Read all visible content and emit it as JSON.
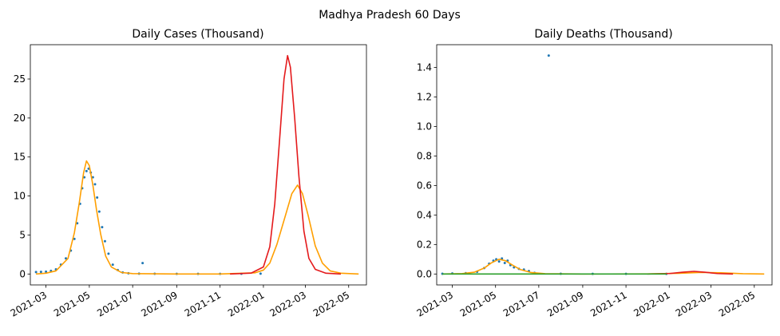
{
  "figure": {
    "suptitle": "Madhya Pradesh 60 Days"
  },
  "colors": {
    "observed": "#1f77b4",
    "model_red": "#e41a1c",
    "model_orange": "#ff9f00",
    "model_green": "#2ca02c",
    "axes": "#000000",
    "background": "#ffffff"
  },
  "chart_data": [
    {
      "type": "line",
      "title": "Daily Cases (Thousand)",
      "xlabel": "",
      "ylabel": "",
      "x_axis": "date",
      "xlim": [
        "2021-02-07",
        "2022-05-26"
      ],
      "ylim": [
        -1.4,
        29.4
      ],
      "x_ticks": [
        "2021-03-01",
        "2021-05-01",
        "2021-07-01",
        "2021-09-01",
        "2021-11-01",
        "2022-01-01",
        "2022-03-01",
        "2022-05-01"
      ],
      "x_tick_labels": [
        "2021-03",
        "2021-05",
        "2021-07",
        "2021-09",
        "2021-11",
        "2022-01",
        "2022-03",
        "2022-05"
      ],
      "y_ticks": [
        0,
        5,
        10,
        15,
        20,
        25
      ],
      "y_tick_labels": [
        "0",
        "5",
        "10",
        "15",
        "20",
        "25"
      ],
      "grid": false,
      "series": [
        {
          "kind": "scatter",
          "color": "observed",
          "points": [
            [
              "2021-02-15",
              0.25
            ],
            [
              "2021-02-22",
              0.28
            ],
            [
              "2021-03-01",
              0.3
            ],
            [
              "2021-03-08",
              0.4
            ],
            [
              "2021-03-15",
              0.6
            ],
            [
              "2021-03-22",
              1.2
            ],
            [
              "2021-03-29",
              2.0
            ],
            [
              "2021-04-05",
              3.0
            ],
            [
              "2021-04-10",
              4.5
            ],
            [
              "2021-04-14",
              6.5
            ],
            [
              "2021-04-18",
              9.0
            ],
            [
              "2021-04-21",
              11.0
            ],
            [
              "2021-04-24",
              12.4
            ],
            [
              "2021-04-27",
              13.2
            ],
            [
              "2021-04-30",
              13.5
            ],
            [
              "2021-05-03",
              13.0
            ],
            [
              "2021-05-06",
              12.4
            ],
            [
              "2021-05-09",
              11.5
            ],
            [
              "2021-05-12",
              9.8
            ],
            [
              "2021-05-15",
              8.0
            ],
            [
              "2021-05-19",
              6.0
            ],
            [
              "2021-05-23",
              4.2
            ],
            [
              "2021-05-28",
              2.6
            ],
            [
              "2021-06-03",
              1.2
            ],
            [
              "2021-06-10",
              0.5
            ],
            [
              "2021-06-17",
              0.2
            ],
            [
              "2021-06-25",
              0.1
            ],
            [
              "2021-07-10",
              0.05
            ],
            [
              "2021-07-15",
              1.4
            ],
            [
              "2021-08-01",
              0.03
            ],
            [
              "2021-09-01",
              0.02
            ],
            [
              "2021-10-01",
              0.02
            ],
            [
              "2021-11-01",
              0.02
            ],
            [
              "2021-12-01",
              0.03
            ],
            [
              "2021-12-28",
              0.05
            ]
          ]
        },
        {
          "kind": "line",
          "color": "model_orange",
          "points": [
            [
              "2021-02-15",
              0.0
            ],
            [
              "2021-03-01",
              0.1
            ],
            [
              "2021-03-15",
              0.4
            ],
            [
              "2021-04-01",
              2.0
            ],
            [
              "2021-04-10",
              5.3
            ],
            [
              "2021-04-17",
              9.2
            ],
            [
              "2021-04-23",
              13.0
            ],
            [
              "2021-04-27",
              14.5
            ],
            [
              "2021-05-01",
              13.9
            ],
            [
              "2021-05-06",
              11.4
            ],
            [
              "2021-05-11",
              8.3
            ],
            [
              "2021-05-17",
              5.1
            ],
            [
              "2021-05-24",
              2.3
            ],
            [
              "2021-06-01",
              0.9
            ],
            [
              "2021-06-15",
              0.2
            ],
            [
              "2021-07-01",
              0.05
            ],
            [
              "2021-09-01",
              0.0
            ],
            [
              "2021-11-01",
              0.0
            ],
            [
              "2021-12-20",
              0.15
            ],
            [
              "2022-01-01",
              0.5
            ],
            [
              "2022-01-10",
              1.4
            ],
            [
              "2022-01-20",
              3.8
            ],
            [
              "2022-02-01",
              7.5
            ],
            [
              "2022-02-10",
              10.3
            ],
            [
              "2022-02-18",
              11.4
            ],
            [
              "2022-02-25",
              10.3
            ],
            [
              "2022-03-05",
              7.5
            ],
            [
              "2022-03-15",
              3.6
            ],
            [
              "2022-03-25",
              1.4
            ],
            [
              "2022-04-05",
              0.4
            ],
            [
              "2022-04-20",
              0.1
            ],
            [
              "2022-05-15",
              0.0
            ]
          ]
        },
        {
          "kind": "line",
          "color": "model_red",
          "points": [
            [
              "2021-11-15",
              0.0
            ],
            [
              "2021-12-15",
              0.12
            ],
            [
              "2022-01-01",
              0.9
            ],
            [
              "2022-01-10",
              3.5
            ],
            [
              "2022-01-17",
              9.0
            ],
            [
              "2022-01-24",
              17.5
            ],
            [
              "2022-01-30",
              25.0
            ],
            [
              "2022-02-04",
              28.0
            ],
            [
              "2022-02-08",
              26.5
            ],
            [
              "2022-02-14",
              20.0
            ],
            [
              "2022-02-20",
              12.5
            ],
            [
              "2022-02-27",
              5.5
            ],
            [
              "2022-03-06",
              2.0
            ],
            [
              "2022-03-15",
              0.6
            ],
            [
              "2022-03-30",
              0.1
            ],
            [
              "2022-04-20",
              0.0
            ]
          ]
        }
      ]
    },
    {
      "type": "line",
      "title": "Daily Deaths (Thousand)",
      "xlabel": "",
      "ylabel": "",
      "x_axis": "date",
      "xlim": [
        "2021-02-07",
        "2022-05-26"
      ],
      "ylim": [
        -0.074,
        1.554
      ],
      "x_ticks": [
        "2021-03-01",
        "2021-05-01",
        "2021-07-01",
        "2021-09-01",
        "2021-11-01",
        "2022-01-01",
        "2022-03-01",
        "2022-05-01"
      ],
      "x_tick_labels": [
        "2021-03",
        "2021-05",
        "2021-07",
        "2021-09",
        "2021-11",
        "2022-01",
        "2022-03",
        "2022-05"
      ],
      "y_ticks": [
        0,
        0.2,
        0.4,
        0.6,
        0.8,
        1.0,
        1.2,
        1.4
      ],
      "y_tick_labels": [
        "0.0",
        "0.2",
        "0.4",
        "0.6",
        "0.8",
        "1.0",
        "1.2",
        "1.4"
      ],
      "grid": false,
      "series": [
        {
          "kind": "scatter",
          "color": "observed",
          "points": [
            [
              "2021-02-15",
              0.002
            ],
            [
              "2021-03-01",
              0.004
            ],
            [
              "2021-03-20",
              0.006
            ],
            [
              "2021-04-05",
              0.015
            ],
            [
              "2021-04-15",
              0.04
            ],
            [
              "2021-04-22",
              0.07
            ],
            [
              "2021-04-28",
              0.09
            ],
            [
              "2021-05-02",
              0.1
            ],
            [
              "2021-05-06",
              0.085
            ],
            [
              "2021-05-10",
              0.105
            ],
            [
              "2021-05-14",
              0.075
            ],
            [
              "2021-05-18",
              0.09
            ],
            [
              "2021-05-22",
              0.06
            ],
            [
              "2021-05-27",
              0.045
            ],
            [
              "2021-06-03",
              0.035
            ],
            [
              "2021-06-10",
              0.03
            ],
            [
              "2021-06-17",
              0.02
            ],
            [
              "2021-06-25",
              0.008
            ],
            [
              "2021-07-15",
              1.48
            ],
            [
              "2021-08-01",
              0.002
            ],
            [
              "2021-09-15",
              0.001
            ],
            [
              "2021-11-01",
              0.001
            ],
            [
              "2021-12-28",
              0.001
            ]
          ]
        },
        {
          "kind": "line",
          "color": "model_orange",
          "points": [
            [
              "2021-02-15",
              0.0
            ],
            [
              "2021-03-15",
              0.003
            ],
            [
              "2021-04-01",
              0.012
            ],
            [
              "2021-04-15",
              0.04
            ],
            [
              "2021-04-25",
              0.075
            ],
            [
              "2021-05-06",
              0.1
            ],
            [
              "2021-05-15",
              0.09
            ],
            [
              "2021-05-25",
              0.06
            ],
            [
              "2021-06-05",
              0.03
            ],
            [
              "2021-06-20",
              0.01
            ],
            [
              "2021-07-10",
              0.002
            ],
            [
              "2021-09-01",
              0.0
            ],
            [
              "2021-12-01",
              0.001
            ],
            [
              "2022-01-15",
              0.005
            ],
            [
              "2022-02-15",
              0.011
            ],
            [
              "2022-03-15",
              0.008
            ],
            [
              "2022-04-15",
              0.002
            ],
            [
              "2022-05-15",
              0.0
            ]
          ]
        },
        {
          "kind": "line",
          "color": "model_red",
          "points": [
            [
              "2021-12-01",
              0.0
            ],
            [
              "2022-01-01",
              0.003
            ],
            [
              "2022-01-20",
              0.012
            ],
            [
              "2022-02-05",
              0.018
            ],
            [
              "2022-02-20",
              0.012
            ],
            [
              "2022-03-10",
              0.003
            ],
            [
              "2022-04-01",
              0.0
            ]
          ]
        },
        {
          "kind": "line",
          "color": "model_green",
          "points": [
            [
              "2021-02-15",
              0.0
            ],
            [
              "2021-12-28",
              0.0
            ]
          ]
        }
      ]
    }
  ]
}
